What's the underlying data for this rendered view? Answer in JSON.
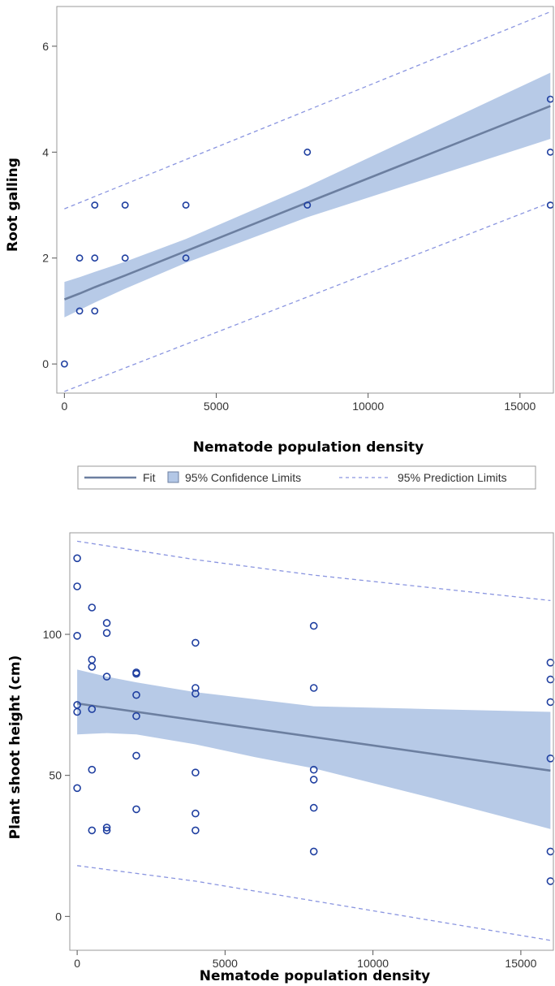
{
  "colors": {
    "fit": "#6c7fa0",
    "confidence_fill": "#b3c7e6",
    "prediction": "#8a95e0",
    "points": "#1f3fa0",
    "frame": "#9a9a9a"
  },
  "legend": {
    "fit_label": "Fit",
    "confidence_label": "95% Confidence Limits",
    "prediction_label": "95% Prediction Limits"
  },
  "chart_data": [
    {
      "type": "scatter",
      "id": "root-galling",
      "title": "",
      "xlabel": "Nematode population density",
      "ylabel": "Root galling",
      "xlim": [
        -250,
        16100
      ],
      "ylim": [
        -0.55,
        6.75
      ],
      "x_ticks": [
        0,
        5000,
        10000,
        15000
      ],
      "x_tick_labels": [
        "0",
        "5000",
        "10000",
        "15000"
      ],
      "y_ticks": [
        0,
        2,
        4,
        6
      ],
      "y_tick_labels": [
        "0",
        "2",
        "4",
        "6"
      ],
      "points": [
        [
          0,
          0
        ],
        [
          500,
          1
        ],
        [
          500,
          2
        ],
        [
          1000,
          1
        ],
        [
          1000,
          2
        ],
        [
          1000,
          3
        ],
        [
          2000,
          2
        ],
        [
          2000,
          3
        ],
        [
          4000,
          2
        ],
        [
          4000,
          3
        ],
        [
          8000,
          3
        ],
        [
          8000,
          4
        ],
        [
          16000,
          3
        ],
        [
          16000,
          4
        ],
        [
          16000,
          5
        ]
      ],
      "fit": {
        "x": [
          0,
          500,
          1000,
          2000,
          4000,
          8000,
          16000
        ],
        "y": [
          1.22,
          1.33,
          1.45,
          1.67,
          2.13,
          3.05,
          4.87
        ]
      },
      "confidence_limits": {
        "x": [
          0,
          500,
          1000,
          2000,
          4000,
          8000,
          16000
        ],
        "lower": [
          0.88,
          1.02,
          1.16,
          1.42,
          1.91,
          2.77,
          4.25
        ],
        "upper": [
          1.55,
          1.64,
          1.74,
          1.93,
          2.36,
          3.35,
          5.5
        ]
      },
      "prediction_limits": {
        "x": [
          0,
          16000
        ],
        "lower": [
          -0.52,
          3.05
        ],
        "upper": [
          2.93,
          6.65
        ]
      }
    },
    {
      "type": "scatter",
      "id": "plant-shoot-height",
      "title": "",
      "xlabel": "Nematode population density",
      "ylabel": "Plant shoot height (cm)",
      "xlim": [
        -250,
        16100
      ],
      "ylim": [
        -12,
        136
      ],
      "x_ticks": [
        0,
        5000,
        10000,
        15000
      ],
      "x_tick_labels": [
        "0",
        "5000",
        "10000",
        "15000"
      ],
      "y_ticks": [
        0,
        50,
        100
      ],
      "y_tick_labels": [
        "0",
        "50",
        "100"
      ],
      "points": [
        [
          0,
          127
        ],
        [
          0,
          117
        ],
        [
          0,
          99.5
        ],
        [
          0,
          75
        ],
        [
          0,
          72.5
        ],
        [
          0,
          45.5
        ],
        [
          500,
          109.5
        ],
        [
          500,
          91
        ],
        [
          500,
          88.5
        ],
        [
          500,
          73.5
        ],
        [
          500,
          52
        ],
        [
          500,
          30.5
        ],
        [
          1000,
          104
        ],
        [
          1000,
          100.5
        ],
        [
          1000,
          85
        ],
        [
          1000,
          31.5
        ],
        [
          1000,
          30.5
        ],
        [
          2000,
          86.5
        ],
        [
          2000,
          86
        ],
        [
          2000,
          78.5
        ],
        [
          2000,
          71
        ],
        [
          2000,
          57
        ],
        [
          2000,
          38
        ],
        [
          4000,
          97
        ],
        [
          4000,
          81
        ],
        [
          4000,
          79
        ],
        [
          4000,
          51
        ],
        [
          4000,
          36.5
        ],
        [
          4000,
          30.5
        ],
        [
          8000,
          103
        ],
        [
          8000,
          81
        ],
        [
          8000,
          52
        ],
        [
          8000,
          48.5
        ],
        [
          8000,
          38.5
        ],
        [
          8000,
          23
        ],
        [
          16000,
          90
        ],
        [
          16000,
          84
        ],
        [
          16000,
          76
        ],
        [
          16000,
          56
        ],
        [
          16000,
          23
        ],
        [
          16000,
          12.5
        ]
      ],
      "fit": {
        "x": [
          0,
          16000
        ],
        "y": [
          75.5,
          51.7
        ]
      },
      "confidence_limits": {
        "x": [
          0,
          1000,
          2000,
          4000,
          6000,
          8000,
          12000,
          16000
        ],
        "lower": [
          64.5,
          65.0,
          64.5,
          61.0,
          56.5,
          52.5,
          42.0,
          31.0
        ],
        "upper": [
          87.5,
          85.0,
          83.0,
          79.5,
          77.0,
          74.5,
          73.5,
          72.5
        ]
      },
      "prediction_limits": {
        "x": [
          0,
          4000,
          8000,
          16000
        ],
        "lower": [
          18.0,
          12.5,
          5.5,
          -8.5
        ],
        "upper": [
          133.0,
          126.5,
          121.0,
          112.0
        ]
      }
    }
  ]
}
